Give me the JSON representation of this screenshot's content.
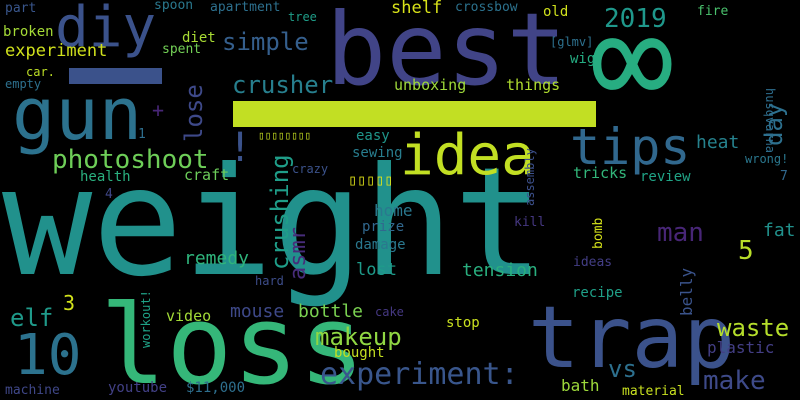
{
  "words": [
    {
      "text": "weight",
      "color": "#21918c"
    },
    {
      "text": "best",
      "color": "#414487"
    },
    {
      "text": "∞",
      "color": "#27ad81"
    },
    {
      "text": "loss",
      "color": "#35b779"
    },
    {
      "text": "trap",
      "color": "#3b528b"
    },
    {
      "text": "gun",
      "color": "#2c728e"
    },
    {
      "text": "idea",
      "color": "#c2df23"
    },
    {
      "text": "diy",
      "color": "#3b528b"
    },
    {
      "text": "10",
      "color": "#2c728e"
    },
    {
      "text": "tips",
      "color": "#31688e"
    },
    {
      "text": "photoshoot",
      "color": "#6ece58"
    },
    {
      "text": "experiment:",
      "color": "#39568c"
    },
    {
      "text": "makeup",
      "color": "#90d743"
    },
    {
      "text": "simple",
      "color": "#355f8d"
    },
    {
      "text": "crusher",
      "color": "#277f8e"
    },
    {
      "text": "2019",
      "color": "#1f988b"
    },
    {
      "text": "waste",
      "color": "#b5de2b"
    },
    {
      "text": "make",
      "color": "#3e4a89"
    },
    {
      "text": "crushing",
      "color": "#1f9e89"
    },
    {
      "text": "day",
      "color": "#2d708e"
    },
    {
      "text": "lose",
      "color": "#3e4989"
    },
    {
      "text": "man",
      "color": "#482677"
    },
    {
      "text": "vs",
      "color": "#2d708e"
    },
    {
      "text": "asmr",
      "color": "#472c7a"
    },
    {
      "text": "elf",
      "color": "#1f9a8a"
    },
    {
      "text": "5",
      "color": "#b8de29"
    },
    {
      "text": "heat",
      "color": "#26828e"
    },
    {
      "text": "bottle",
      "color": "#7ad151"
    },
    {
      "text": "remedy",
      "color": "#2fb47c"
    },
    {
      "text": "tension",
      "color": "#29af7f"
    },
    {
      "text": "shelf",
      "color": "#d8e219"
    },
    {
      "text": "mouse",
      "color": "#3e4989"
    },
    {
      "text": "home",
      "color": "#2a788e"
    },
    {
      "text": "lost",
      "color": "#1e9b8a"
    },
    {
      "text": "fat",
      "color": "#21918c"
    },
    {
      "text": "unboxing",
      "color": "#9fda3a"
    },
    {
      "text": "things",
      "color": "#b0dd2f"
    },
    {
      "text": "experiment",
      "color": "#d0e11c"
    },
    {
      "text": "broken",
      "color": "#a5db36"
    },
    {
      "text": "diet",
      "color": "#a8db34"
    },
    {
      "text": "spent",
      "color": "#73d056"
    },
    {
      "text": "3",
      "color": "#d2e21b"
    },
    {
      "text": "video",
      "color": "#a2da37"
    },
    {
      "text": "stop",
      "color": "#cae11f"
    },
    {
      "text": "bath",
      "color": "#9dd93b"
    },
    {
      "text": "tricks",
      "color": "#32b67a"
    },
    {
      "text": "review",
      "color": "#20a486"
    },
    {
      "text": "craft",
      "color": "#6ccd5a"
    },
    {
      "text": "health",
      "color": "#2ab07f"
    },
    {
      "text": "prize",
      "color": "#31688e"
    },
    {
      "text": "damage",
      "color": "#2a788e"
    },
    {
      "text": "plastic",
      "color": "#433e85"
    },
    {
      "text": "belly",
      "color": "#3a538b"
    },
    {
      "text": "bought",
      "color": "#c5e021"
    },
    {
      "text": "material",
      "color": "#c8e020"
    },
    {
      "text": "youtube",
      "color": "#424086"
    },
    {
      "text": "$11,000",
      "color": "#2e6f8e"
    },
    {
      "text": "machine",
      "color": "#3f4788"
    },
    {
      "text": "sewing",
      "color": "#287d8e"
    },
    {
      "text": "easy",
      "color": "#1f968b"
    },
    {
      "text": "recipe",
      "color": "#1fa088"
    },
    {
      "text": "ideas",
      "color": "#433e85"
    },
    {
      "text": "bomb",
      "color": "#d5e21a"
    },
    {
      "text": "kill",
      "color": "#453781"
    },
    {
      "text": "assembly",
      "color": "#3c508b"
    },
    {
      "text": "wig",
      "color": "#25ac82"
    },
    {
      "text": "old",
      "color": "#d0e11c"
    },
    {
      "text": "crossbow",
      "color": "#2c728e"
    },
    {
      "text": "apartment",
      "color": "#2d708e"
    },
    {
      "text": "spoon",
      "color": "#2a788e"
    },
    {
      "text": "tree",
      "color": "#1f9e89"
    },
    {
      "text": "part",
      "color": "#39568c"
    },
    {
      "text": "fire",
      "color": "#4ac16d"
    },
    {
      "text": "husqvarna",
      "color": "#2e6e8e"
    },
    {
      "text": "wrong!",
      "color": "#2a778e"
    },
    {
      "text": "[glmv]",
      "color": "#2d718e"
    },
    {
      "text": "car.",
      "color": "#bddf26"
    },
    {
      "text": "empty",
      "color": "#2d708e"
    },
    {
      "text": "crazy",
      "color": "#3b528b"
    },
    {
      "text": "cake",
      "color": "#453882"
    },
    {
      "text": "hard",
      "color": "#3d4d8a"
    },
    {
      "text": "workout!",
      "color": "#1fa287"
    },
    {
      "text": "1",
      "color": "#2e6e8e"
    },
    {
      "text": "4",
      "color": "#3f4788"
    },
    {
      "text": "7",
      "color": "#31688e"
    },
    {
      "text": "+",
      "color": "#482677"
    },
    {
      "text": "!",
      "color": "#3b528b"
    },
    {
      "text": "▯▯▯▯▯▯▯▯",
      "color": "#c7e020"
    },
    {
      "text": "▯▯▯▯▯",
      "color": "#e2e418"
    }
  ],
  "bars": [
    {
      "color": "#c2df23"
    },
    {
      "color": "#3b528b"
    }
  ]
}
